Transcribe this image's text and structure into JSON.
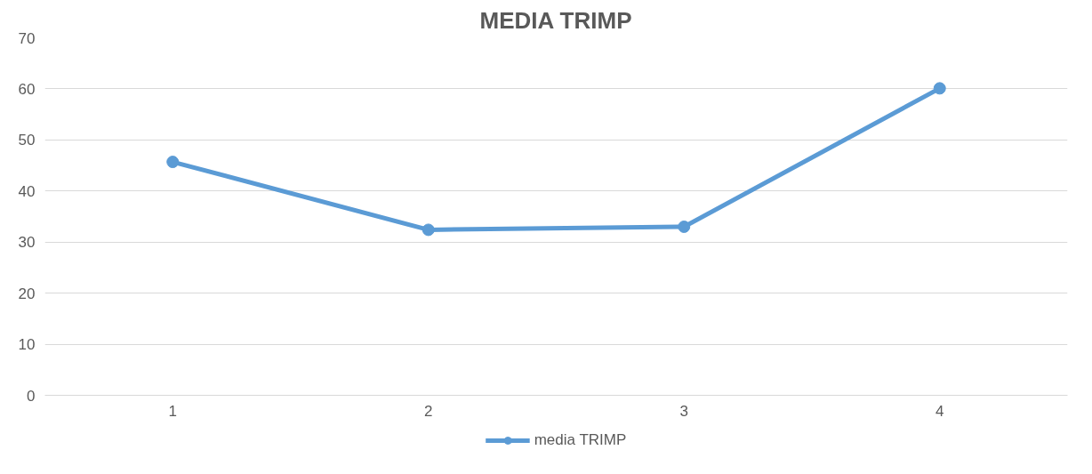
{
  "chart_data": {
    "type": "line",
    "title": "MEDIA TRIMP",
    "categories": [
      "1",
      "2",
      "3",
      "4"
    ],
    "series": [
      {
        "name": "media TRIMP",
        "color": "#5b9bd5",
        "values": [
          45.7,
          32.4,
          33.0,
          60.1
        ]
      }
    ],
    "ylim": [
      0,
      70
    ],
    "yticks": [
      0,
      10,
      20,
      30,
      40,
      50,
      60,
      70
    ],
    "grid": "y",
    "legend": "bottom",
    "marker": "circle"
  }
}
